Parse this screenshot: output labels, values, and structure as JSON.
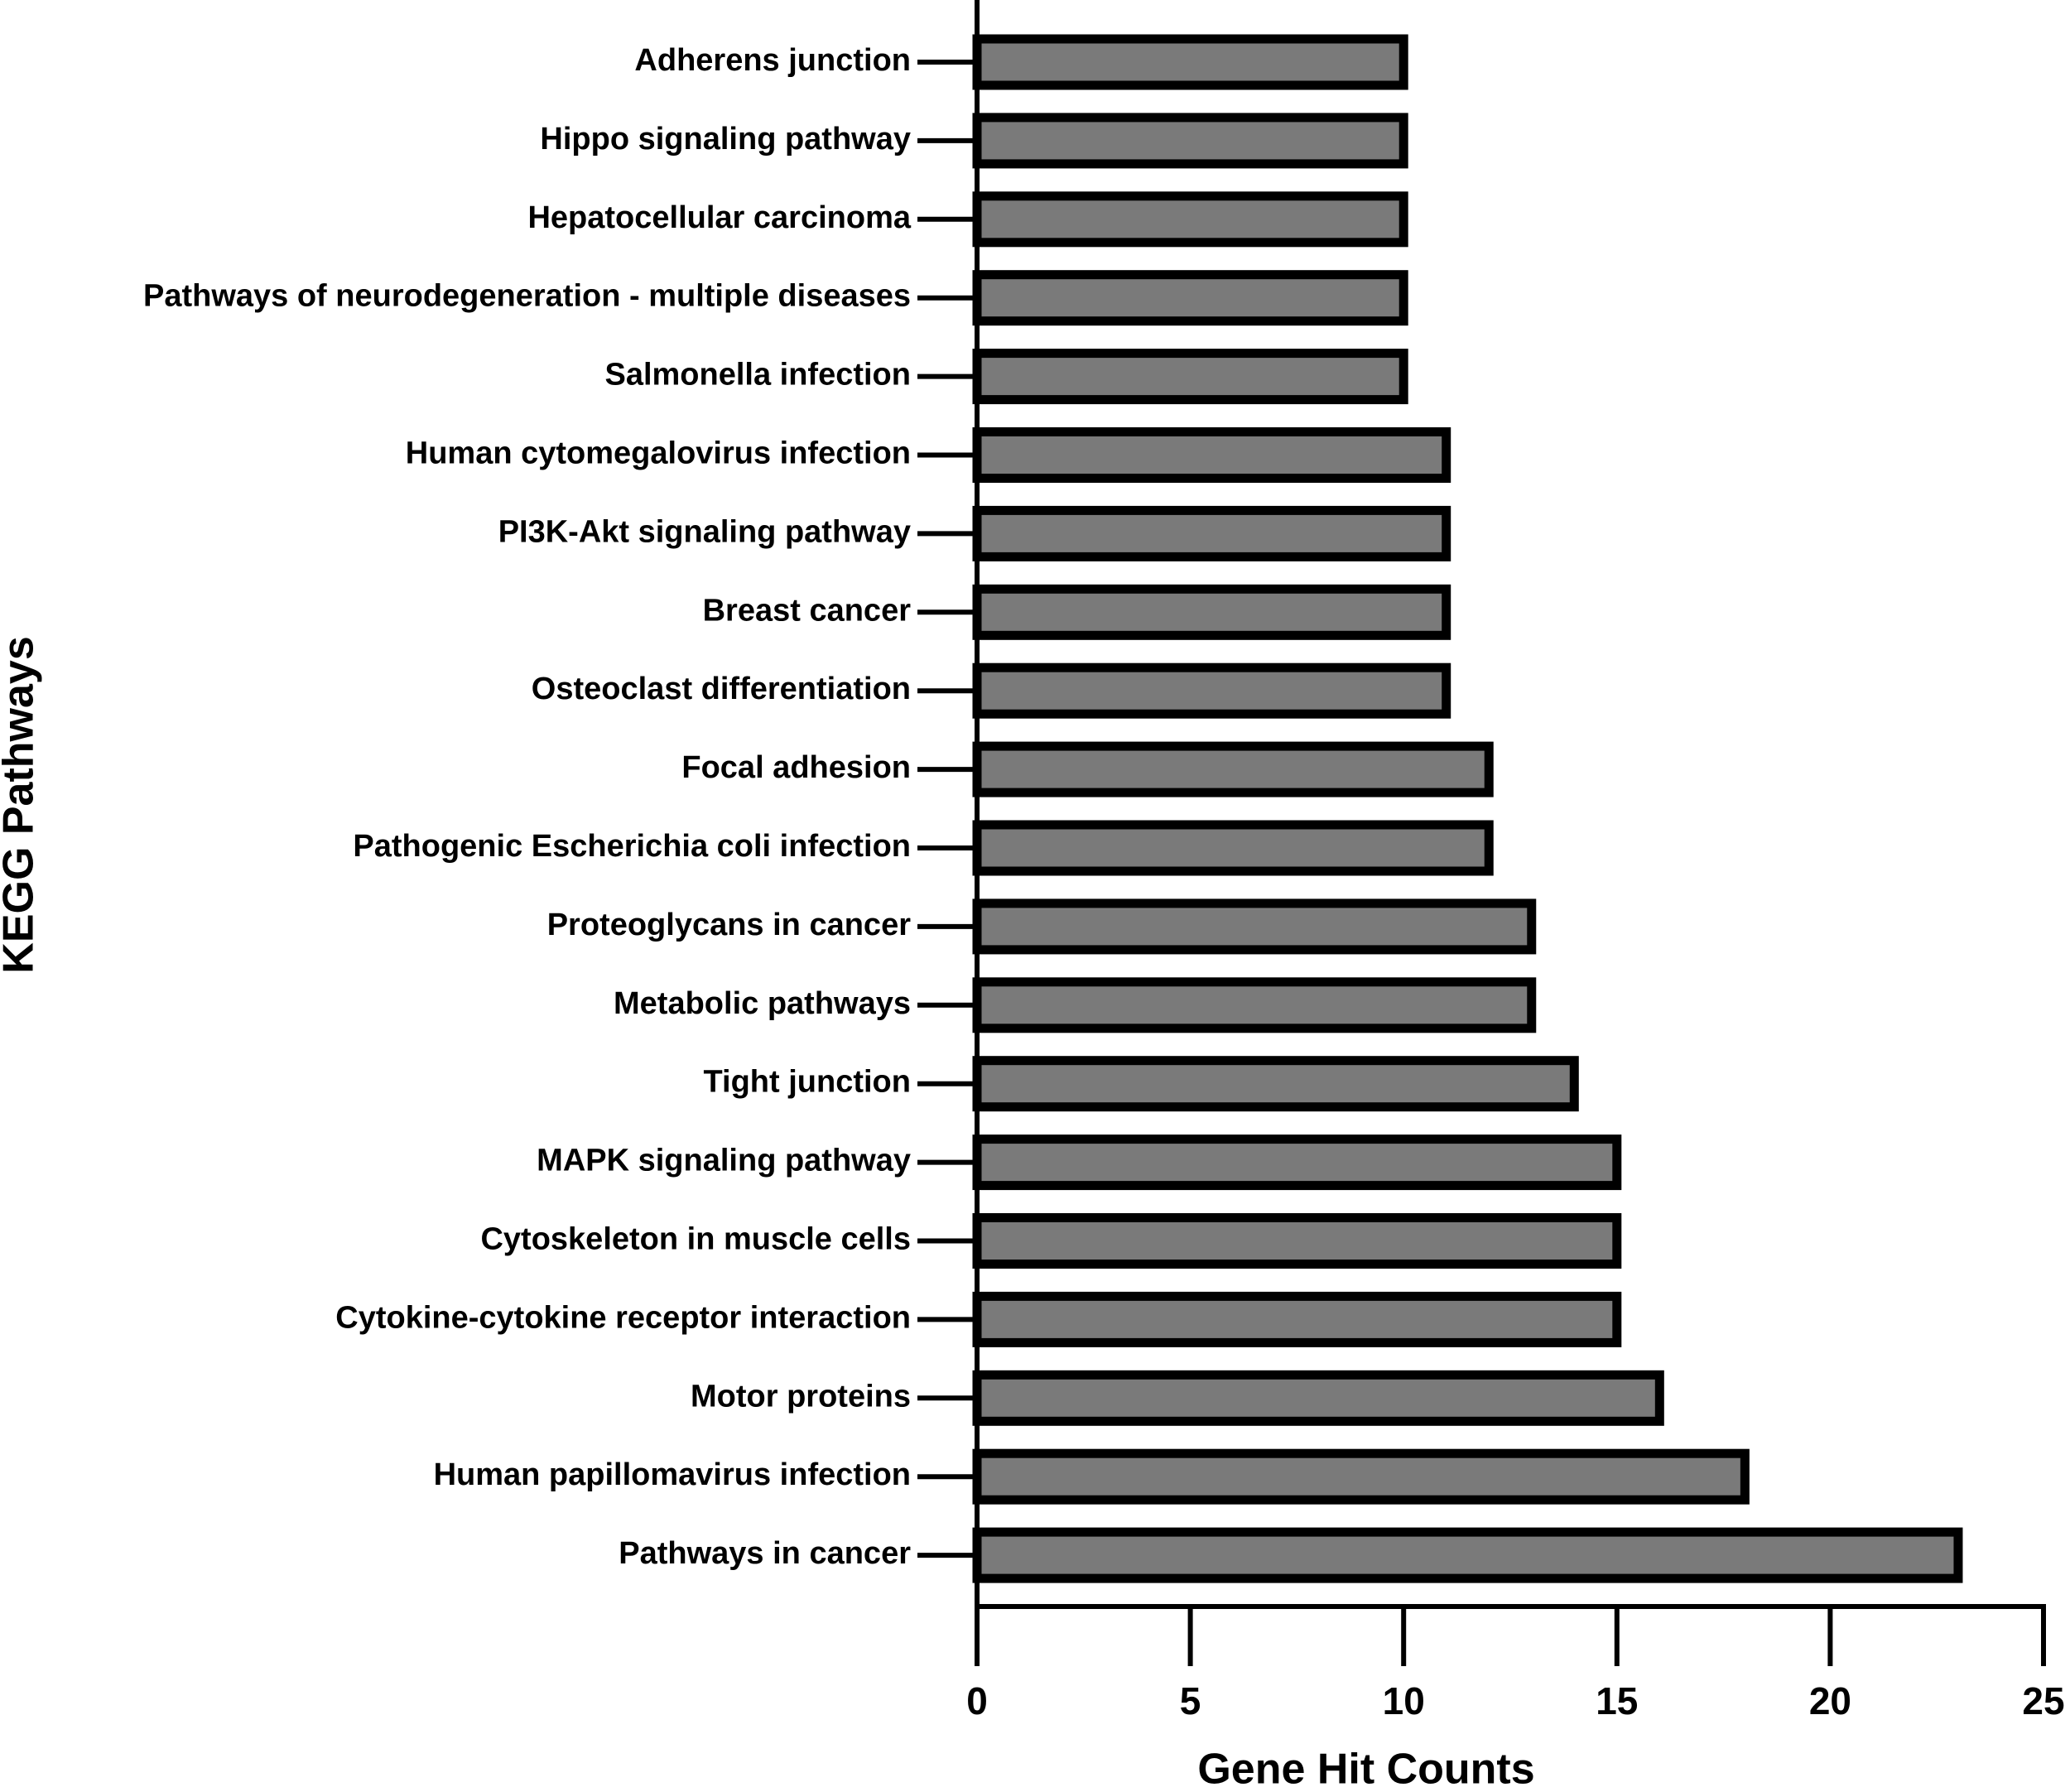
{
  "chart_data": {
    "type": "barh",
    "xlabel": "Gene  Hit  Counts",
    "ylabel": "KEGG  Pathways",
    "categories": [
      "Adherens junction",
      "Hippo signaling pathway",
      "Hepatocellular carcinoma",
      "Pathways of neurodegeneration - multiple diseases",
      "Salmonella infection",
      "Human cytomegalovirus infection",
      "PI3K-Akt signaling pathway",
      "Breast cancer",
      "Osteoclast differentiation",
      "Focal adhesion",
      "Pathogenic Escherichia coli infection",
      "Proteoglycans in cancer",
      "Metabolic pathways",
      "Tight junction",
      "MAPK signaling pathway",
      "Cytoskeleton in muscle cells",
      "Cytokine-cytokine receptor interaction",
      "Motor proteins",
      "Human papillomavirus infection",
      "Pathways in cancer"
    ],
    "values": [
      10,
      10,
      10,
      10,
      10,
      11,
      11,
      11,
      11,
      12,
      12,
      13,
      13,
      14,
      15,
      15,
      15,
      16,
      18,
      23
    ],
    "color": "#7a7a7a",
    "edgecolor": "#000000",
    "xlim": [
      0,
      25
    ],
    "xticks": [
      0,
      5,
      10,
      15,
      20,
      25
    ]
  }
}
